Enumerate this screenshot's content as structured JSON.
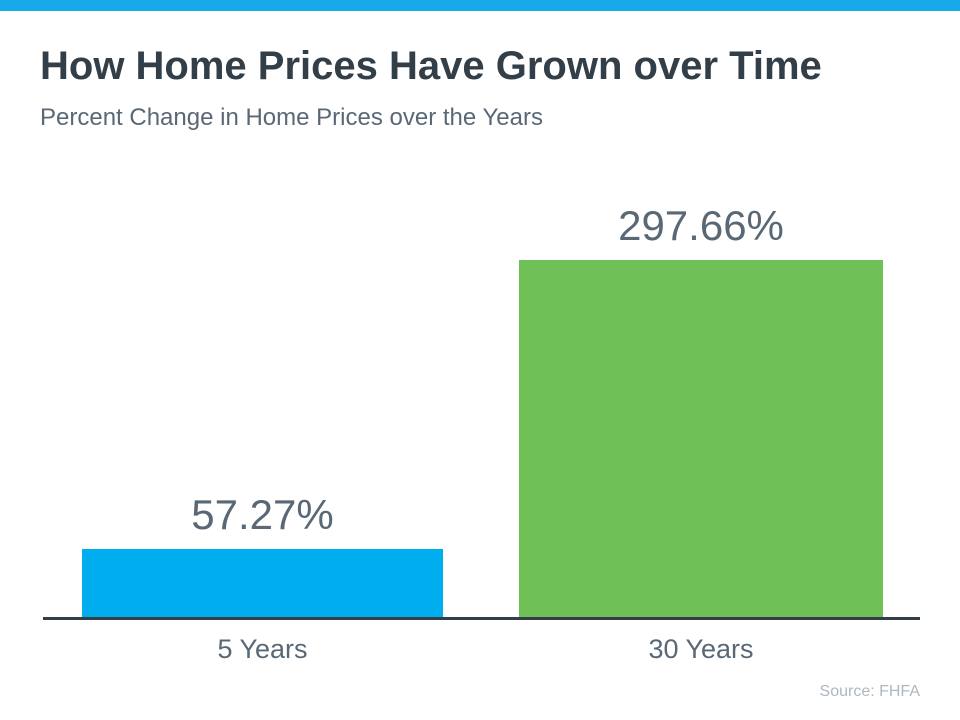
{
  "header": {
    "title": "How Home Prices Have Grown over Time",
    "subtitle": "Percent Change in Home Prices over the Years"
  },
  "chart_data": {
    "type": "bar",
    "title": "How Home Prices Have Grown over Time",
    "subtitle": "Percent Change in Home Prices over the Years",
    "categories": [
      "5 Years",
      "30 Years"
    ],
    "values": [
      57.27,
      297.66
    ],
    "value_labels": [
      "57.27%",
      "297.66%"
    ],
    "bar_colors": [
      "#00AEEF",
      "#6FC157"
    ],
    "label_color": "#5A6876",
    "xlabel": "",
    "ylabel": "",
    "ylim": [
      0,
      320
    ],
    "grid": false,
    "legend": "none",
    "source": "Source: FHFA"
  },
  "footer": {
    "source": "Source: FHFA"
  },
  "theme": {
    "background": "#FFFFFF",
    "top_bar_color": "#16AAE9",
    "axis_color": "#323E48",
    "title_color": "#323E48",
    "subtitle_color": "#5A6876",
    "source_color": "#AEB7BF"
  }
}
